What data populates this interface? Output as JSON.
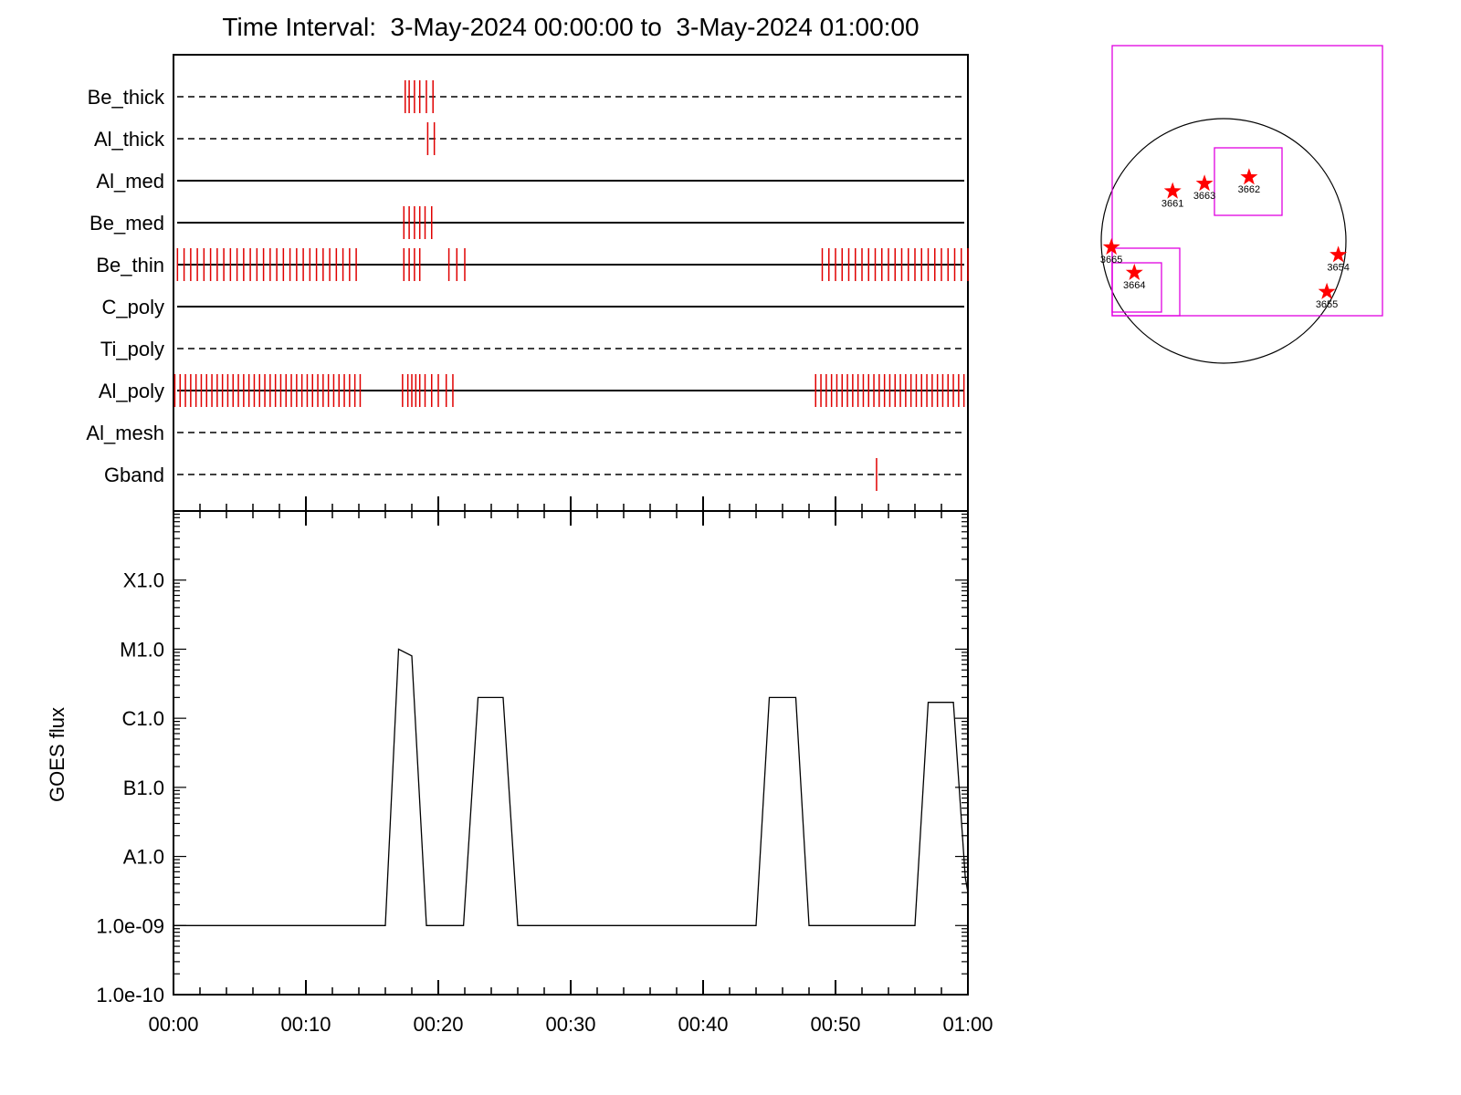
{
  "title": "Time Interval:  3-May-2024 00:00:00 to  3-May-2024 01:00:00",
  "colors": {
    "axis": "#000000",
    "event_mark": "#e00000",
    "fov_box": "#e000e0",
    "active_region_star": "#ff0000"
  },
  "chart_data": [
    {
      "type": "event_timeline",
      "x_unit": "minutes since 00:00",
      "xlim": [
        0,
        60
      ],
      "filters": [
        {
          "name": "Be_thick",
          "line_style": "dashed",
          "events": [
            17.5,
            17.8,
            18.2,
            18.6,
            19.1,
            19.6
          ]
        },
        {
          "name": "Al_thick",
          "line_style": "dashed",
          "events": [
            19.2,
            19.7
          ]
        },
        {
          "name": "Al_med",
          "line_style": "solid",
          "events": []
        },
        {
          "name": "Be_med",
          "line_style": "solid",
          "events": [
            17.4,
            17.8,
            18.2,
            18.6,
            19.0,
            19.5
          ]
        },
        {
          "name": "Be_thin",
          "line_style": "solid",
          "events": [
            0.3,
            0.8,
            1.3,
            1.8,
            2.3,
            2.8,
            3.3,
            3.8,
            4.3,
            4.8,
            5.3,
            5.8,
            6.3,
            6.8,
            7.3,
            7.8,
            8.3,
            8.8,
            9.3,
            9.8,
            10.3,
            10.8,
            11.3,
            11.8,
            12.3,
            12.8,
            13.3,
            13.8,
            17.4,
            17.8,
            18.2,
            18.6,
            20.8,
            21.4,
            22.0,
            49.0,
            49.5,
            50.0,
            50.5,
            51.0,
            51.5,
            52.0,
            52.5,
            53.0,
            53.5,
            54.0,
            54.5,
            55.0,
            55.5,
            56.0,
            56.5,
            57.0,
            57.5,
            58.0,
            58.5,
            59.0,
            59.5,
            60.0
          ]
        },
        {
          "name": "C_poly",
          "line_style": "solid",
          "events": []
        },
        {
          "name": "Ti_poly",
          "line_style": "dashed",
          "events": []
        },
        {
          "name": "Al_poly",
          "line_style": "solid",
          "events": [
            0.1,
            0.5,
            0.9,
            1.3,
            1.7,
            2.1,
            2.5,
            2.9,
            3.3,
            3.7,
            4.1,
            4.5,
            4.9,
            5.3,
            5.7,
            6.1,
            6.5,
            6.9,
            7.3,
            7.7,
            8.1,
            8.5,
            8.9,
            9.3,
            9.7,
            10.1,
            10.5,
            10.9,
            11.3,
            11.7,
            12.1,
            12.5,
            12.9,
            13.3,
            13.7,
            14.1,
            17.3,
            17.7,
            18.0,
            18.3,
            18.6,
            19.0,
            19.5,
            20.0,
            20.6,
            21.1,
            48.5,
            48.9,
            49.3,
            49.7,
            50.1,
            50.5,
            50.9,
            51.3,
            51.7,
            52.1,
            52.5,
            52.9,
            53.3,
            53.7,
            54.1,
            54.5,
            54.9,
            55.3,
            55.7,
            56.1,
            56.5,
            56.9,
            57.3,
            57.7,
            58.1,
            58.5,
            58.9,
            59.3,
            59.7
          ]
        },
        {
          "name": "Al_mesh",
          "line_style": "dashed",
          "events": []
        },
        {
          "name": "Gband",
          "line_style": "dashed",
          "events": [
            53.1
          ]
        }
      ]
    },
    {
      "type": "line",
      "ylabel": "GOES flux",
      "y_scale": "log",
      "ylim": [
        1e-10,
        0.001
      ],
      "y_ticks": [
        {
          "value": 1e-10,
          "label": "1.0e-10"
        },
        {
          "value": 1e-09,
          "label": "1.0e-09"
        },
        {
          "value": 1e-08,
          "label": "A1.0"
        },
        {
          "value": 1e-07,
          "label": "B1.0"
        },
        {
          "value": 1e-06,
          "label": "C1.0"
        },
        {
          "value": 1e-05,
          "label": "M1.0"
        },
        {
          "value": 0.0001,
          "label": "X1.0"
        }
      ],
      "x_ticks": [
        {
          "value": 0,
          "label": "00:00"
        },
        {
          "value": 10,
          "label": "00:10"
        },
        {
          "value": 20,
          "label": "00:20"
        },
        {
          "value": 30,
          "label": "00:30"
        },
        {
          "value": 40,
          "label": "00:40"
        },
        {
          "value": 50,
          "label": "00:50"
        },
        {
          "value": 60,
          "label": "01:00"
        }
      ],
      "xlim": [
        0,
        60
      ],
      "x": [
        0,
        16.0,
        17.0,
        18.0,
        19.1,
        20.0,
        21.9,
        23.0,
        24.9,
        26.0,
        44.0,
        45.0,
        47.0,
        48.0,
        56.0,
        57.0,
        58.9,
        59.8,
        60.0
      ],
      "y": [
        1e-09,
        1e-09,
        1e-05,
        8e-06,
        1e-09,
        1e-09,
        1e-09,
        2e-06,
        2e-06,
        1e-09,
        1e-09,
        2e-06,
        2e-06,
        1e-09,
        1e-09,
        1.7e-06,
        1.7e-06,
        5e-09,
        3e-09
      ]
    }
  ],
  "sun_map": {
    "active_regions": [
      {
        "id": "3661",
        "x": -400,
        "y": 390
      },
      {
        "id": "3663",
        "x": -150,
        "y": 450
      },
      {
        "id": "3662",
        "x": 200,
        "y": 500
      },
      {
        "id": "3665",
        "x": -880,
        "y": -50
      },
      {
        "id": "3664",
        "x": -700,
        "y": -250
      },
      {
        "id": "3654",
        "x": 900,
        "y": -110
      },
      {
        "id": "3655",
        "x": 810,
        "y": -400
      }
    ]
  }
}
